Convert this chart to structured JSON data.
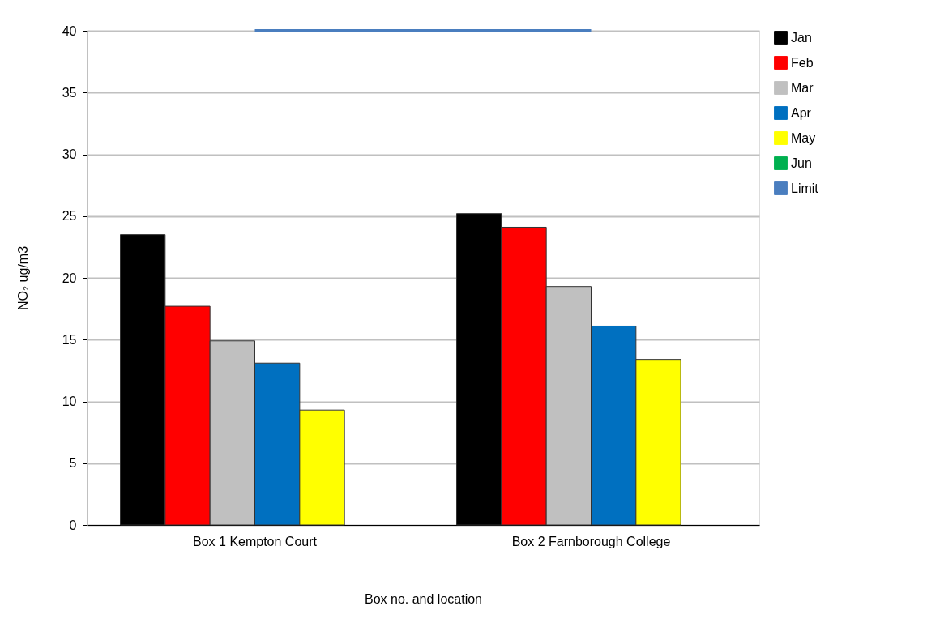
{
  "chart_data": {
    "type": "bar",
    "xlabel": "Box no. and location",
    "ylabel": "NO₂ ug/m3",
    "categories": [
      "Box 1 Kempton Court",
      "Box 2 Farnborough College"
    ],
    "series": [
      {
        "name": "Jan",
        "color": "#000000",
        "values": [
          23.5,
          25.2
        ]
      },
      {
        "name": "Feb",
        "color": "#ff0000",
        "values": [
          17.7,
          24.1
        ]
      },
      {
        "name": "Mar",
        "color": "#c0c0c0",
        "values": [
          14.9,
          19.3
        ]
      },
      {
        "name": "Apr",
        "color": "#0070c0",
        "values": [
          13.1,
          16.1
        ]
      },
      {
        "name": "May",
        "color": "#ffff00",
        "values": [
          9.3,
          13.4
        ]
      },
      {
        "name": "Jun",
        "color": "#00b050",
        "values": [
          null,
          null
        ]
      },
      {
        "name": "Limit",
        "color": "#4a7ebf",
        "type": "line",
        "values": [
          40,
          40
        ]
      }
    ],
    "ylim": [
      0,
      40
    ],
    "yticks": [
      0,
      5,
      10,
      15,
      20,
      25,
      30,
      35,
      40
    ],
    "grid": "y",
    "legend": "right"
  }
}
